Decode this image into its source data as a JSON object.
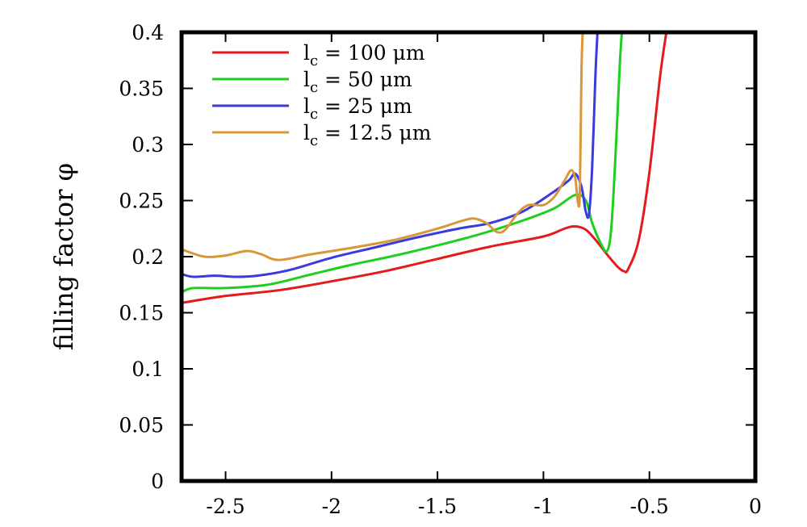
{
  "chart_data": {
    "type": "line",
    "title": "",
    "xlabel": "",
    "ylabel": "filling factor φ",
    "xlim": [
      -2.7,
      0
    ],
    "ylim": [
      0,
      0.4
    ],
    "xticks": [
      -2.5,
      -2,
      -1.5,
      -1,
      -0.5,
      0
    ],
    "xtick_labels": [
      "-2.5",
      "-2",
      "-1.5",
      "-1",
      "-0.5",
      "0"
    ],
    "yticks": [
      0,
      0.05,
      0.1,
      0.15,
      0.2,
      0.25,
      0.3,
      0.35,
      0.4
    ],
    "ytick_labels": [
      "0",
      "0.05",
      "0.1",
      "0.15",
      "0.2",
      "0.25",
      "0.3",
      "0.35",
      "0.4"
    ],
    "grid": false,
    "legend_position": "top-left",
    "series": [
      {
        "name": "l_c = 100 μm",
        "legend_main": "l",
        "legend_sub": "c",
        "legend_rest": " = 100 μm",
        "color": "#e41a1c",
        "x": [
          -2.7,
          -2.5,
          -2.25,
          -2.0,
          -1.75,
          -1.5,
          -1.25,
          -1.0,
          -0.9,
          -0.85,
          -0.8,
          -0.75,
          -0.7,
          -0.65,
          -0.62,
          -0.6,
          -0.55,
          -0.5,
          -0.45,
          -0.42
        ],
        "y": [
          0.159,
          0.165,
          0.17,
          0.178,
          0.187,
          0.198,
          0.209,
          0.218,
          0.225,
          0.227,
          0.224,
          0.214,
          0.202,
          0.191,
          0.187,
          0.189,
          0.215,
          0.275,
          0.36,
          0.4
        ]
      },
      {
        "name": "l_c = 50 μm",
        "legend_main": "l",
        "legend_sub": "c",
        "legend_rest": " = 50 μm",
        "color": "#1fcf1f",
        "x": [
          -2.7,
          -2.65,
          -2.5,
          -2.3,
          -2.1,
          -1.9,
          -1.7,
          -1.5,
          -1.3,
          -1.1,
          -0.95,
          -0.85,
          -0.8,
          -0.77,
          -0.73,
          -0.7,
          -0.68,
          -0.66,
          -0.64,
          -0.63
        ],
        "y": [
          0.169,
          0.172,
          0.172,
          0.175,
          0.184,
          0.193,
          0.201,
          0.21,
          0.22,
          0.232,
          0.243,
          0.255,
          0.25,
          0.23,
          0.212,
          0.205,
          0.225,
          0.29,
          0.37,
          0.4
        ]
      },
      {
        "name": "l_c = 25 μm",
        "legend_main": "l",
        "legend_sub": "c",
        "legend_rest": " = 25 μm",
        "color": "#3a3adf",
        "x": [
          -2.7,
          -2.65,
          -2.55,
          -2.45,
          -2.35,
          -2.2,
          -2.0,
          -1.8,
          -1.6,
          -1.4,
          -1.25,
          -1.1,
          -0.95,
          -0.88,
          -0.85,
          -0.82,
          -0.8,
          -0.785,
          -0.77,
          -0.755,
          -0.745
        ],
        "y": [
          0.184,
          0.182,
          0.183,
          0.182,
          0.183,
          0.188,
          0.199,
          0.208,
          0.217,
          0.225,
          0.23,
          0.24,
          0.258,
          0.268,
          0.274,
          0.262,
          0.24,
          0.238,
          0.28,
          0.36,
          0.4
        ]
      },
      {
        "name": "l_c = 12.5 μm",
        "legend_main": "l",
        "legend_sub": "c",
        "legend_rest": " = 12.5 μm",
        "color": "#d9973a",
        "x": [
          -2.7,
          -2.6,
          -2.5,
          -2.4,
          -2.33,
          -2.25,
          -2.1,
          -1.9,
          -1.7,
          -1.5,
          -1.4,
          -1.33,
          -1.27,
          -1.22,
          -1.18,
          -1.12,
          -1.07,
          -1.0,
          -0.95,
          -0.9,
          -0.87,
          -0.85,
          -0.84,
          -0.83,
          -0.825,
          -0.82,
          -0.815
        ],
        "y": [
          0.206,
          0.2,
          0.201,
          0.205,
          0.202,
          0.197,
          0.202,
          0.208,
          0.215,
          0.225,
          0.231,
          0.234,
          0.23,
          0.222,
          0.224,
          0.239,
          0.246,
          0.246,
          0.253,
          0.268,
          0.277,
          0.27,
          0.252,
          0.248,
          0.3,
          0.37,
          0.4
        ]
      }
    ]
  }
}
